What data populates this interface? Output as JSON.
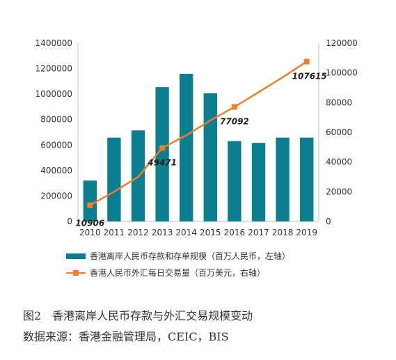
{
  "chart_data": {
    "type": "bar",
    "categories": [
      "2010",
      "2011",
      "2012",
      "2013",
      "2014",
      "2015",
      "2016",
      "2017",
      "2018",
      "2019"
    ],
    "series": [
      {
        "name": "香港离岸人民币存款和存单规模（百万人民币，左轴）",
        "kind": "bar",
        "axis": "left",
        "values": [
          321000,
          658000,
          715000,
          1055000,
          1159000,
          1006000,
          631000,
          617000,
          658000,
          658000
        ],
        "color": "#0b7f8f"
      },
      {
        "name": "香港人民币外汇每日交易量（百万美元，右轴）",
        "kind": "line",
        "axis": "right",
        "values": [
          10906,
          20000,
          30000,
          49471,
          58000,
          68000,
          77092,
          87000,
          97000,
          107615
        ],
        "color": "#ef7d2c"
      }
    ],
    "data_labels": [
      {
        "index": 0,
        "text": "10906"
      },
      {
        "index": 3,
        "text": "49471"
      },
      {
        "index": 6,
        "text": "77092"
      },
      {
        "index": 9,
        "text": "107615"
      }
    ],
    "y_left": {
      "ylim": [
        0,
        1400000
      ],
      "ticks": [
        "0",
        "200000",
        "400000",
        "600000",
        "800000",
        "1000000",
        "1200000",
        "1400000"
      ]
    },
    "y_right": {
      "ylim": [
        0,
        120000
      ],
      "ticks": [
        "0",
        "20000",
        "40000",
        "60000",
        "80000",
        "100000",
        "120000"
      ]
    },
    "grid": false,
    "legend_position": "bottom"
  },
  "caption": {
    "title": "图2　香港离岸人民币存款与外汇交易规模变动",
    "source": "数据来源：香港金融管理局，CEIC，BIS"
  }
}
